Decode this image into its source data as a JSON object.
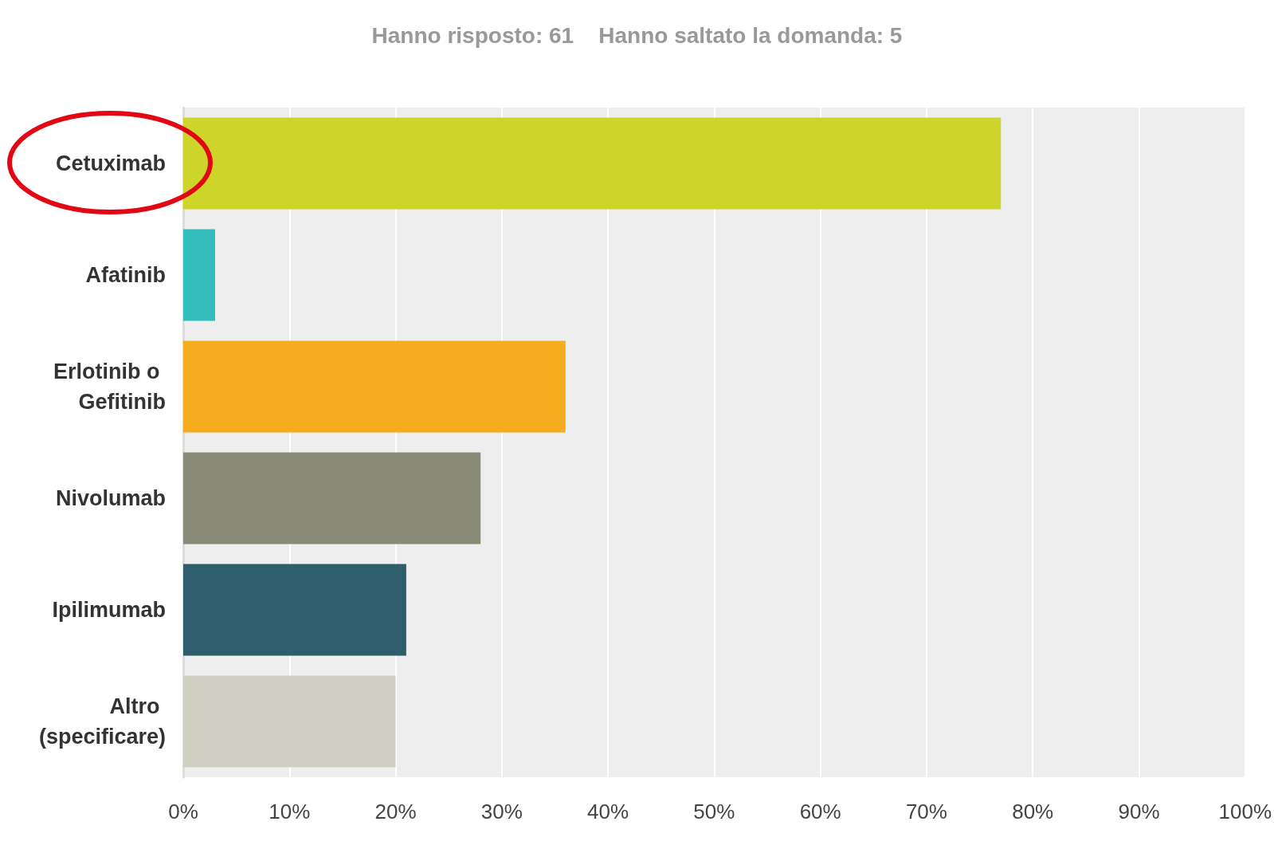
{
  "chart_data": {
    "type": "bar",
    "orientation": "horizontal",
    "subtitle": "Hanno risposto: 61    Hanno saltato la domanda: 5",
    "categories": [
      "Cetuximab",
      "Afatinib",
      "Erlotinib o Gefitinib",
      "Nivolumab",
      "Ipilimumab",
      "Altro (specificare)"
    ],
    "values": [
      77,
      3,
      36,
      28,
      21,
      20
    ],
    "colors": [
      "#cdd52b",
      "#33bdbd",
      "#f5ad1f",
      "#898a78",
      "#2e5e6b",
      "#cfcfc2"
    ],
    "xlim": [
      0,
      100
    ],
    "xticks": [
      {
        "value": 0,
        "label": "0%"
      },
      {
        "value": 10,
        "label": "10%"
      },
      {
        "value": 20,
        "label": "20%"
      },
      {
        "value": 30,
        "label": "30%"
      },
      {
        "value": 40,
        "label": "40%"
      },
      {
        "value": 50,
        "label": "50%"
      },
      {
        "value": 60,
        "label": "60%"
      },
      {
        "value": 70,
        "label": "70%"
      },
      {
        "value": 80,
        "label": "80%"
      },
      {
        "value": 90,
        "label": "90%"
      },
      {
        "value": 100,
        "label": "100%"
      }
    ],
    "grid": "x"
  }
}
